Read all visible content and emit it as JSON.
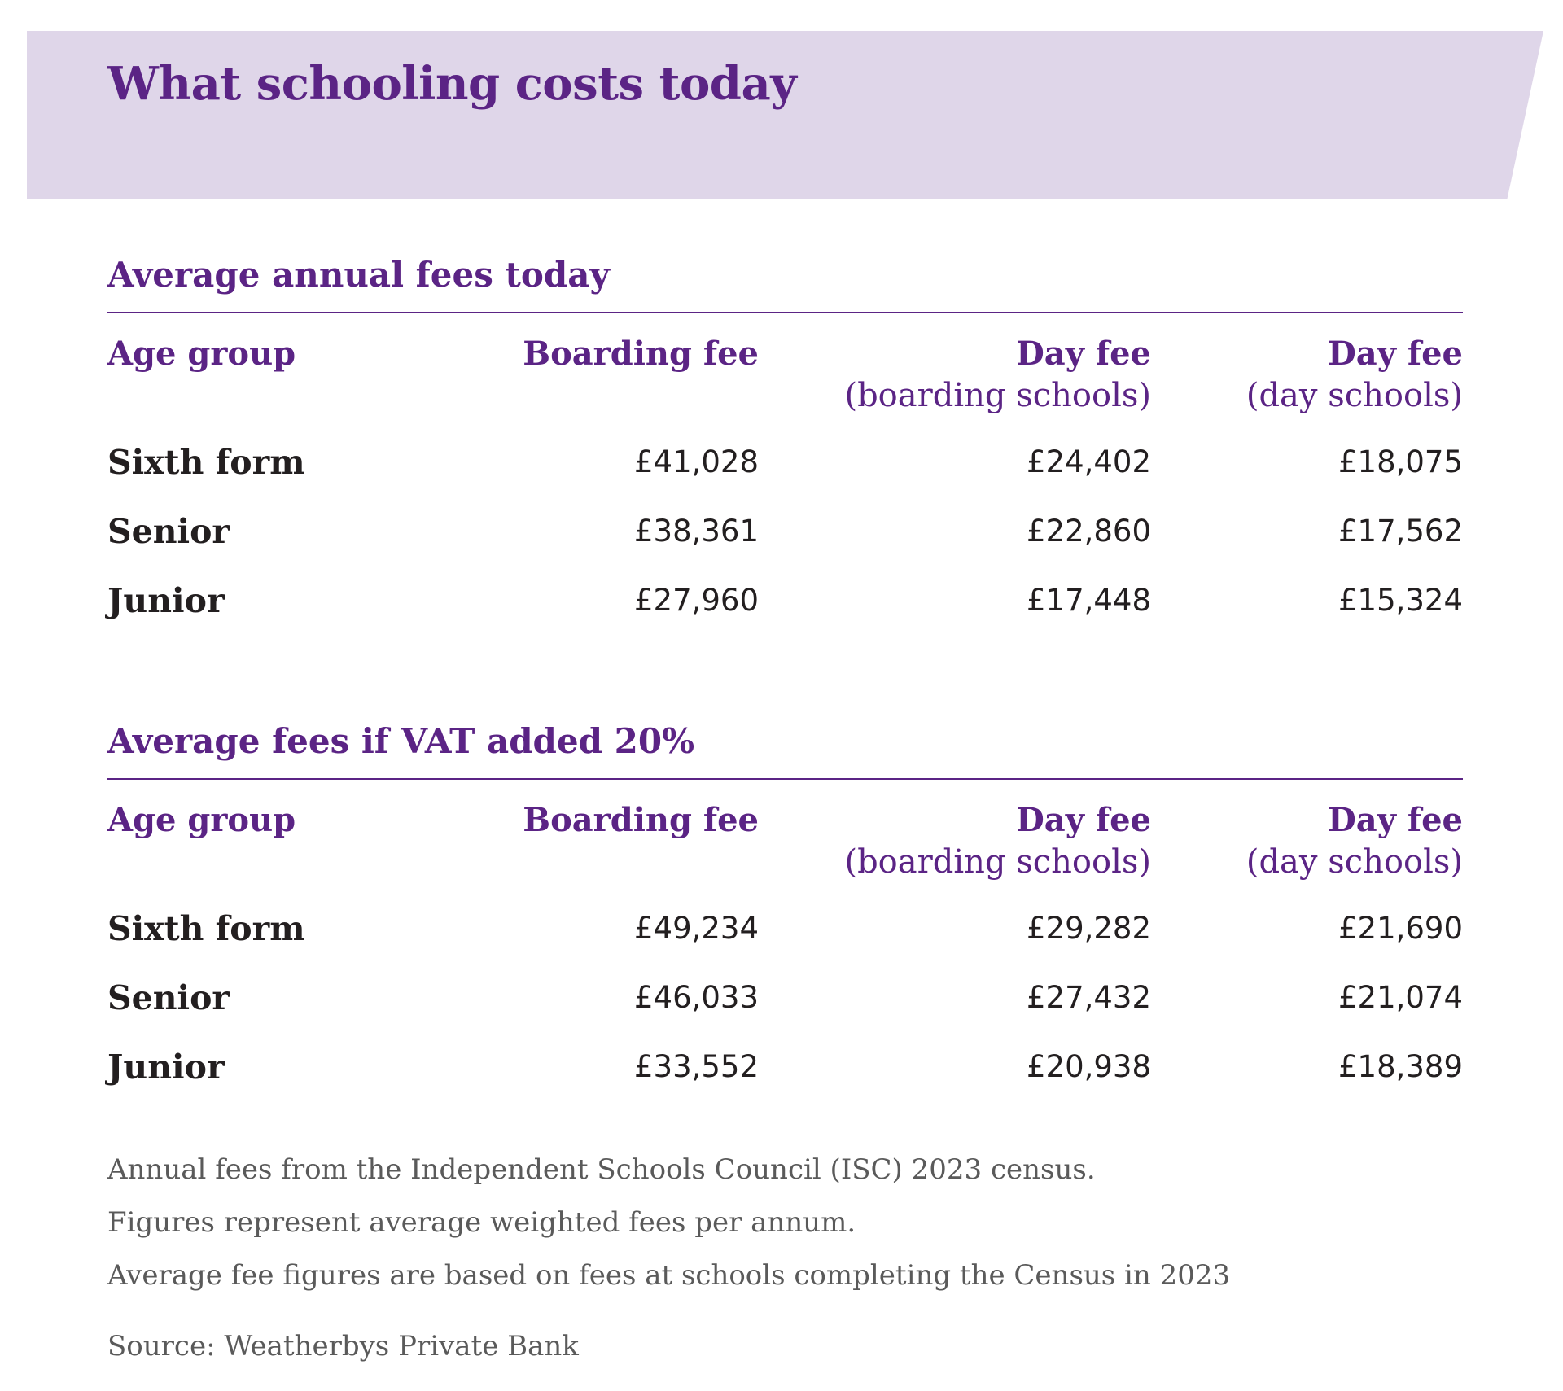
{
  "page": {
    "title": "What schooling costs today"
  },
  "current": {
    "title": "Average annual fees today",
    "headers": {
      "age_group": "Age group",
      "boarding_fee": "Boarding fee",
      "day_fee_boarding": "Day fee",
      "day_fee_boarding_sub": "(boarding schools)",
      "day_fee_day": "Day fee",
      "day_fee_day_sub": "(day schools)"
    },
    "rows": [
      {
        "age": "Sixth form",
        "boarding": "£41,028",
        "day_boarding": "£24,402",
        "day_day": "£18,075"
      },
      {
        "age": "Senior",
        "boarding": "£38,361",
        "day_boarding": "£22,860",
        "day_day": "£17,562"
      },
      {
        "age": "Junior",
        "boarding": "£27,960",
        "day_boarding": "£17,448",
        "day_day": "£15,324"
      }
    ]
  },
  "vat": {
    "title": "Average fees if VAT added 20%",
    "headers": {
      "age_group": "Age group",
      "boarding_fee": "Boarding fee",
      "day_fee_boarding": "Day fee",
      "day_fee_boarding_sub": "(boarding schools)",
      "day_fee_day": "Day fee",
      "day_fee_day_sub": "(day schools)"
    },
    "rows": [
      {
        "age": "Sixth form",
        "boarding": "£49,234",
        "day_boarding": "£29,282",
        "day_day": "£21,690"
      },
      {
        "age": "Senior",
        "boarding": "£46,033",
        "day_boarding": "£27,432",
        "day_day": "£21,074"
      },
      {
        "age": "Junior",
        "boarding": "£33,552",
        "day_boarding": "£20,938",
        "day_day": "£18,389"
      }
    ]
  },
  "notes": {
    "line1": "Annual fees from the Independent Schools Council (ISC) 2023 census.",
    "line2": "Figures represent average weighted fees per annum.",
    "line3": "Average fee figures are based on fees at schools completing the Census in 2023",
    "source": "Source: Weatherbys Private Bank"
  },
  "colors": {
    "accent": "#5b2485",
    "banner": "#dfd6e9",
    "text": "#231f20",
    "muted": "#5a5a5a"
  }
}
